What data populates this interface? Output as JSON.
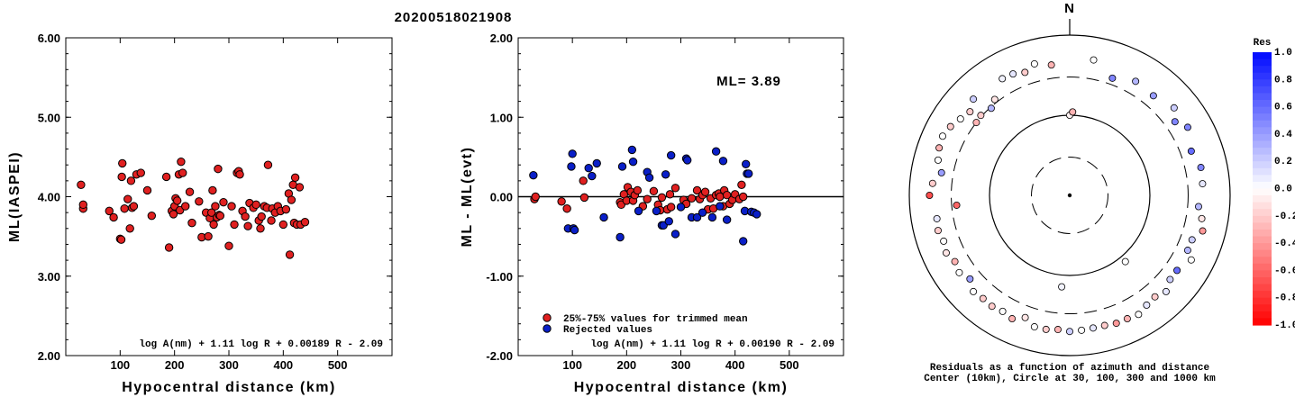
{
  "title": "20200518021908",
  "chart_data": [
    {
      "type": "scatter",
      "xlabel": "Hypocentral distance (km)",
      "ylabel": "ML(IASPEI)",
      "xlim": [
        0,
        600
      ],
      "ylim": [
        2.0,
        6.0
      ],
      "xticks": [
        "100",
        "200",
        "300",
        "400",
        "500"
      ],
      "yticks": [
        "2.00",
        "3.00",
        "4.00",
        "5.00",
        "6.00"
      ],
      "formula": "log A(nm) + 1.11 log R + 0.00189 R - 2.09",
      "point_color": "#e02020",
      "series": [
        {
          "x": [
            28,
            32,
            32,
            80,
            88,
            100,
            102,
            103,
            104,
            108,
            114,
            118,
            120,
            122,
            125,
            130,
            138,
            150,
            158,
            185,
            190,
            195,
            198,
            200,
            202,
            205,
            208,
            210,
            212,
            215,
            220,
            228,
            232,
            245,
            250,
            258,
            262,
            265,
            268,
            270,
            272,
            275,
            278,
            280,
            282,
            284,
            290,
            300,
            305,
            310,
            315,
            318,
            320,
            325,
            330,
            335,
            338,
            345,
            350,
            355,
            358,
            360,
            365,
            370,
            372,
            378,
            380,
            385,
            390,
            395,
            400,
            405,
            410,
            412,
            415,
            418,
            420,
            422,
            425,
            430,
            432,
            440
          ],
          "y": [
            4.15,
            3.85,
            3.9,
            3.82,
            3.74,
            3.47,
            3.46,
            4.25,
            4.42,
            3.85,
            3.97,
            3.6,
            4.2,
            3.86,
            3.88,
            4.28,
            4.3,
            4.08,
            3.76,
            4.25,
            3.36,
            3.82,
            3.78,
            3.88,
            3.98,
            3.95,
            4.28,
            3.83,
            4.44,
            4.3,
            3.88,
            4.06,
            3.67,
            3.94,
            3.49,
            3.8,
            3.5,
            3.73,
            3.8,
            4.08,
            3.65,
            3.88,
            3.74,
            4.35,
            3.77,
            3.76,
            3.93,
            3.38,
            3.88,
            3.65,
            4.3,
            4.32,
            4.28,
            3.82,
            3.75,
            3.63,
            3.92,
            3.86,
            3.9,
            3.7,
            3.6,
            3.75,
            3.88,
            3.86,
            4.4,
            3.7,
            3.85,
            3.8,
            3.88,
            3.82,
            3.65,
            3.84,
            4.04,
            3.27,
            3.96,
            4.15,
            3.67,
            4.24,
            3.65,
            4.12,
            3.65,
            3.68
          ]
        }
      ]
    },
    {
      "type": "scatter",
      "xlabel": "Hypocentral distance (km)",
      "ylabel": "ML - ML(evt)",
      "xlim": [
        0,
        600
      ],
      "ylim": [
        -2.0,
        2.0
      ],
      "xticks": [
        "100",
        "200",
        "300",
        "400",
        "500"
      ],
      "yticks": [
        "-2.00",
        "-1.00",
        "0.00",
        "1.00",
        "2.00"
      ],
      "hline": 0.0,
      "annotation": "ML= 3.89",
      "formula": "log A(nm) + 1.11 log R + 0.00190 R - 2.09",
      "legend": [
        "25%-75% values for trimmed mean",
        "Rejected values"
      ],
      "series": [
        {
          "name": "25%-75% values for trimmed mean",
          "color": "#e02020",
          "x": [
            30,
            32,
            80,
            90,
            120,
            122,
            188,
            190,
            195,
            200,
            202,
            208,
            212,
            215,
            220,
            230,
            238,
            250,
            258,
            262,
            265,
            275,
            280,
            282,
            290,
            305,
            310,
            320,
            330,
            335,
            340,
            345,
            350,
            355,
            360,
            365,
            370,
            372,
            378,
            380,
            385,
            390,
            395,
            400,
            408,
            412,
            415
          ],
          "y": [
            -0.03,
            0.0,
            -0.06,
            -0.15,
            0.2,
            -0.01,
            -0.07,
            -0.1,
            0.03,
            -0.05,
            0.12,
            0.06,
            -0.05,
            0.02,
            0.08,
            -0.12,
            -0.03,
            0.07,
            -0.1,
            -0.17,
            -0.01,
            -0.16,
            0.03,
            -0.13,
            0.11,
            -0.04,
            -0.09,
            -0.02,
            0.08,
            -0.03,
            0.02,
            0.06,
            -0.16,
            -0.02,
            -0.15,
            0.02,
            0.04,
            0.0,
            -0.12,
            0.08,
            0.02,
            -0.09,
            -0.04,
            0.03,
            -0.03,
            0.15,
            0.0
          ]
        },
        {
          "name": "Rejected values",
          "color": "#0a1fc8",
          "x": [
            28,
            92,
            98,
            100,
            102,
            104,
            130,
            136,
            145,
            158,
            188,
            192,
            210,
            212,
            222,
            238,
            242,
            255,
            265,
            268,
            272,
            278,
            282,
            290,
            300,
            310,
            312,
            320,
            330,
            340,
            358,
            365,
            372,
            378,
            385,
            415,
            418,
            420,
            422,
            425,
            430,
            435,
            440
          ],
          "y": [
            0.27,
            -0.4,
            0.38,
            0.54,
            -0.4,
            -0.42,
            0.36,
            0.26,
            0.42,
            -0.26,
            -0.51,
            0.38,
            0.59,
            0.44,
            -0.18,
            0.31,
            0.24,
            -0.18,
            -0.36,
            -0.36,
            0.28,
            -0.31,
            0.52,
            -0.47,
            -0.13,
            0.48,
            0.46,
            -0.26,
            -0.26,
            -0.2,
            -0.26,
            0.57,
            -0.12,
            0.45,
            -0.29,
            -0.56,
            -0.18,
            0.41,
            0.29,
            0.29,
            -0.19,
            -0.2,
            -0.22
          ]
        }
      ]
    },
    {
      "type": "polar_scatter",
      "north_label": "N",
      "footnote_line1": "Residuals as a function of azimuth and distance",
      "footnote_line2": "Center (10km), Circle at 30, 100, 300 and 1000 km",
      "colorbar_title": "Res",
      "colorbar_ticks": [
        "1.0",
        "0.8",
        "0.6",
        "0.4",
        "0.2",
        "0.0",
        "-0.2",
        "-0.4",
        "-0.6",
        "-0.8",
        "-1.0"
      ],
      "points": {
        "azimuth_deg": [
          0,
          2,
          55,
          140,
          185,
          265,
          308,
          312,
          318,
          322,
          330,
          335,
          340,
          345,
          352,
          10,
          20,
          30,
          40,
          50,
          60,
          70,
          78,
          85,
          95,
          100,
          105,
          110,
          115,
          118,
          125,
          130,
          135,
          140,
          145,
          150,
          155,
          160,
          165,
          170,
          175,
          180,
          185,
          190,
          195,
          200,
          205,
          210,
          215,
          220,
          225,
          230,
          235,
          240,
          245,
          250,
          255,
          260,
          270,
          275,
          280,
          285,
          290,
          295,
          300,
          305,
          310,
          315
        ],
        "distance_km": [
          100,
          110,
          400,
          120,
          140,
          260,
          300,
          310,
          290,
          330,
          480,
          470,
          430,
          500,
          440,
          520,
          360,
          440,
          420,
          500,
          500,
          410,
          470,
          460,
          410,
          470,
          520,
          420,
          420,
          520,
          430,
          430,
          500,
          450,
          470,
          520,
          500,
          500,
          480,
          480,
          490,
          500,
          480,
          500,
          500,
          420,
          500,
          470,
          490,
          480,
          500,
          420,
          480,
          450,
          500,
          470,
          500,
          480,
          560,
          520,
          420,
          500,
          540,
          560,
          520,
          460,
          420,
          500
        ],
        "residual": [
          -0.05,
          -0.3,
          0.5,
          0.0,
          0.05,
          -0.6,
          -0.3,
          -0.2,
          0.3,
          -0.1,
          0.05,
          0.1,
          -0.2,
          0.0,
          -0.3,
          0.0,
          0.5,
          0.3,
          0.4,
          0.2,
          0.5,
          0.6,
          0.5,
          0.1,
          0.3,
          -0.1,
          -0.4,
          0.2,
          0.3,
          0.0,
          0.6,
          0.2,
          0.1,
          -0.2,
          0.1,
          0.0,
          -0.3,
          -0.4,
          -0.2,
          0.1,
          0.0,
          0.2,
          -0.3,
          -0.2,
          0.0,
          -0.1,
          -0.3,
          0.0,
          -0.2,
          -0.2,
          0.0,
          0.4,
          0.0,
          -0.3,
          -0.1,
          0.0,
          -0.2,
          0.1,
          -0.7,
          -0.2,
          0.4,
          0.0,
          -0.3,
          0.0,
          -0.2,
          0.0,
          -0.2,
          0.2
        ]
      }
    }
  ]
}
